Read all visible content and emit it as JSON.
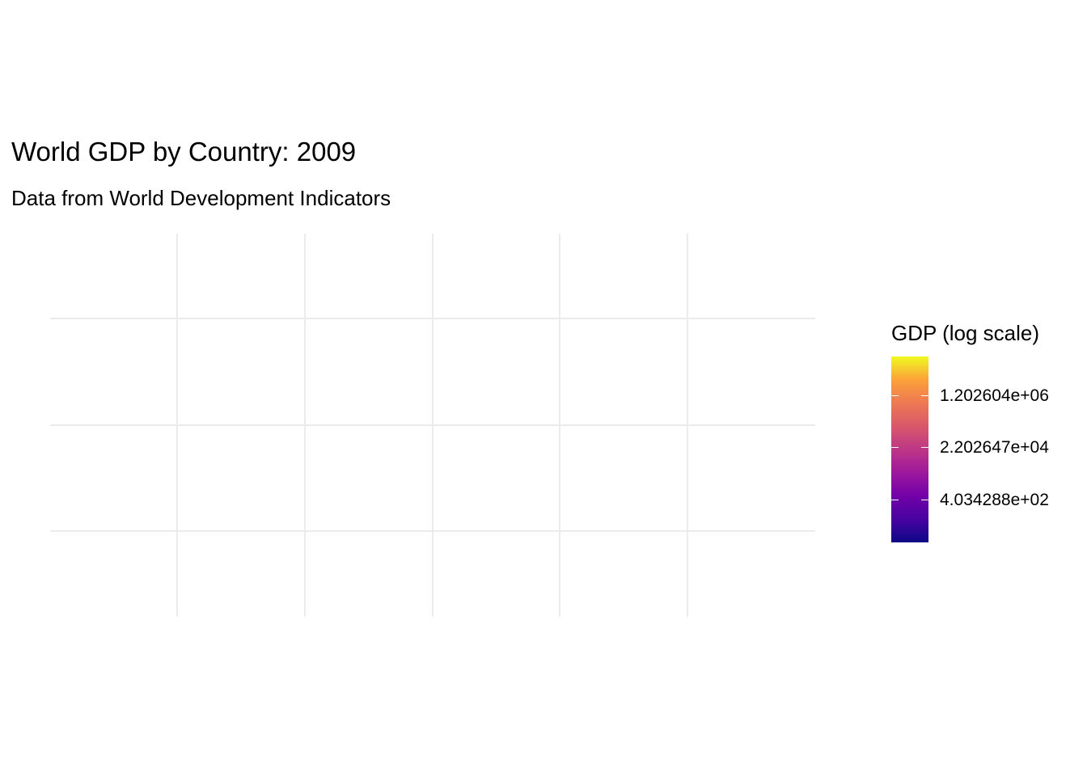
{
  "title": "World GDP by Country: 2009",
  "subtitle": "Data from World Development Indicators",
  "legend": {
    "title": "GDP (log scale)",
    "palette": [
      "#0d0887",
      "#46039f",
      "#7201a8",
      "#9c179e",
      "#bd3786",
      "#d8576b",
      "#ed7953",
      "#fb9f3a",
      "#f0f921"
    ],
    "breaks": [
      {
        "label": "1.202604e+06",
        "log_value": 14
      },
      {
        "label": "2.202647e+04",
        "log_value": 10
      },
      {
        "label": "4.034288e+02",
        "log_value": 6
      }
    ]
  },
  "map": {
    "grid_color": "#ebebeb",
    "background": "#ffffff",
    "countries_drawn": false
  }
}
